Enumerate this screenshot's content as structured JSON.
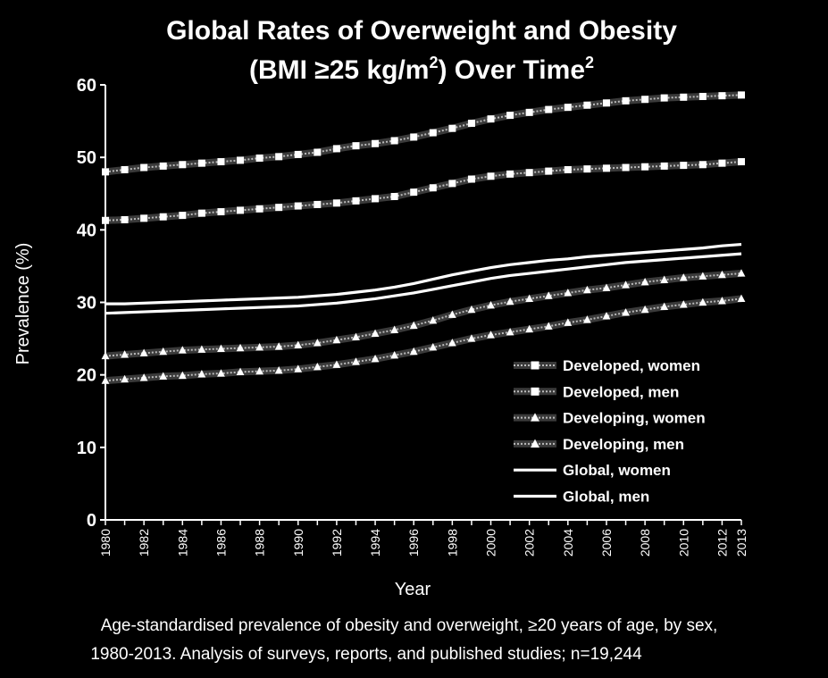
{
  "chart_data": {
    "type": "line",
    "title": "Global Rates of Overweight and Obesity",
    "subtitle_pre": "(BMI ≥25 kg/m",
    "subtitle_sup": "2",
    "subtitle_mid": ") Over Time",
    "subtitle_ref": "2",
    "xlabel": "Year",
    "ylabel": "Prevalence (%)",
    "ylim": [
      0,
      60
    ],
    "yticks": [
      0,
      10,
      20,
      30,
      40,
      50,
      60
    ],
    "xlim": [
      1980,
      2013
    ],
    "xticks": [
      1980,
      1982,
      1984,
      1986,
      1988,
      1990,
      1992,
      1994,
      1996,
      1998,
      2000,
      2002,
      2004,
      2006,
      2008,
      2010,
      2012,
      2013
    ],
    "x": [
      1980,
      1981,
      1982,
      1983,
      1984,
      1985,
      1986,
      1987,
      1988,
      1989,
      1990,
      1991,
      1992,
      1993,
      1994,
      1995,
      1996,
      1997,
      1998,
      1999,
      2000,
      2001,
      2002,
      2003,
      2004,
      2005,
      2006,
      2007,
      2008,
      2009,
      2010,
      2011,
      2012,
      2013
    ],
    "legend_position": "right",
    "series": [
      {
        "name": "Developed, women",
        "marker": "square",
        "style": "dotted-marker",
        "values": [
          48.0,
          48.3,
          48.6,
          48.8,
          49.0,
          49.2,
          49.4,
          49.6,
          49.9,
          50.1,
          50.4,
          50.7,
          51.2,
          51.6,
          51.9,
          52.3,
          52.8,
          53.4,
          54.0,
          54.7,
          55.3,
          55.8,
          56.2,
          56.6,
          56.9,
          57.2,
          57.5,
          57.8,
          58.0,
          58.2,
          58.3,
          58.4,
          58.5,
          58.6
        ]
      },
      {
        "name": "Developed, men",
        "marker": "square",
        "style": "dotted-marker",
        "values": [
          41.3,
          41.4,
          41.6,
          41.8,
          42.0,
          42.3,
          42.5,
          42.7,
          42.9,
          43.1,
          43.3,
          43.5,
          43.7,
          44.0,
          44.3,
          44.6,
          45.2,
          45.8,
          46.4,
          47.0,
          47.4,
          47.7,
          47.9,
          48.1,
          48.3,
          48.4,
          48.5,
          48.6,
          48.7,
          48.8,
          48.9,
          49.0,
          49.2,
          49.4
        ]
      },
      {
        "name": "Developing, women",
        "marker": "triangle",
        "style": "dotted-marker",
        "values": [
          22.6,
          22.8,
          23.0,
          23.2,
          23.4,
          23.5,
          23.6,
          23.7,
          23.8,
          23.9,
          24.1,
          24.4,
          24.8,
          25.2,
          25.7,
          26.2,
          26.8,
          27.5,
          28.3,
          29.0,
          29.6,
          30.1,
          30.5,
          30.9,
          31.3,
          31.7,
          32.0,
          32.4,
          32.8,
          33.1,
          33.4,
          33.6,
          33.8,
          34.0
        ]
      },
      {
        "name": "Developing, men",
        "marker": "triangle",
        "style": "dotted-marker",
        "values": [
          19.2,
          19.4,
          19.6,
          19.8,
          19.9,
          20.1,
          20.2,
          20.4,
          20.5,
          20.6,
          20.8,
          21.1,
          21.4,
          21.8,
          22.2,
          22.7,
          23.2,
          23.8,
          24.4,
          25.0,
          25.5,
          25.9,
          26.3,
          26.7,
          27.2,
          27.6,
          28.1,
          28.6,
          29.0,
          29.4,
          29.7,
          30.0,
          30.2,
          30.5
        ]
      },
      {
        "name": "Global, women",
        "marker": "none",
        "style": "solid",
        "values": [
          29.8,
          29.8,
          29.9,
          30.0,
          30.1,
          30.2,
          30.3,
          30.4,
          30.5,
          30.6,
          30.7,
          30.9,
          31.1,
          31.4,
          31.7,
          32.1,
          32.6,
          33.2,
          33.8,
          34.3,
          34.8,
          35.2,
          35.5,
          35.8,
          36.0,
          36.3,
          36.5,
          36.7,
          36.9,
          37.1,
          37.3,
          37.5,
          37.8,
          38.0
        ]
      },
      {
        "name": "Global, men",
        "marker": "none",
        "style": "solid",
        "values": [
          28.5,
          28.6,
          28.7,
          28.8,
          28.9,
          29.0,
          29.1,
          29.2,
          29.3,
          29.4,
          29.5,
          29.7,
          29.9,
          30.2,
          30.5,
          30.9,
          31.3,
          31.8,
          32.3,
          32.8,
          33.3,
          33.7,
          34.0,
          34.3,
          34.6,
          34.9,
          35.2,
          35.5,
          35.7,
          35.9,
          36.1,
          36.3,
          36.5,
          36.7
        ]
      }
    ],
    "caption_line1": "Age-standardised prevalence of obesity and overweight, ≥20 years of age, by sex,",
    "caption_line2": "1980-2013. Analysis of surveys, reports, and published studies; n=19,244"
  },
  "colors": {
    "background": "#000000",
    "text": "#ffffff",
    "line_outer": "#3a3a3a",
    "line_inner": "#bbbbbb",
    "marker": "#ffffff",
    "global_line": "#ffffff"
  }
}
